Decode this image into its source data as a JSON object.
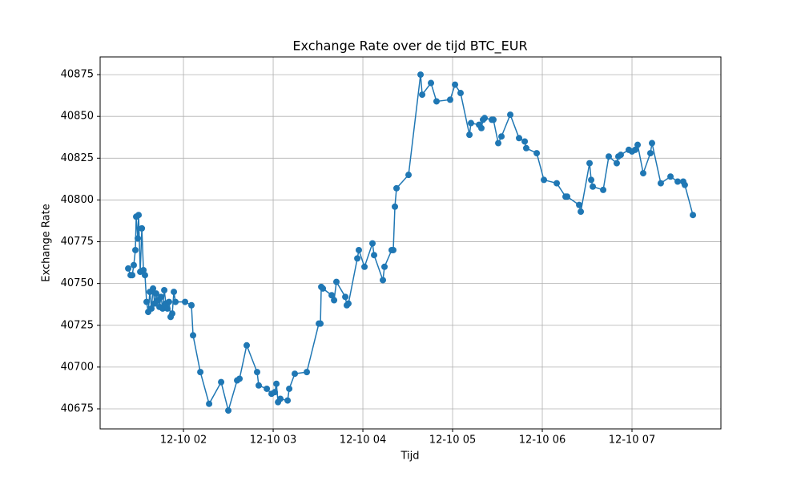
{
  "chart_data": {
    "type": "line",
    "title": "Exchange Rate over de tijd BTC_EUR",
    "x_label": "Tijd",
    "y_label": "Exchange Rate",
    "grid": true,
    "marker": "circle",
    "xlim": [
      1.071,
      7.991
    ],
    "ylim": [
      40663.0,
      40885.6
    ],
    "xticks": [
      {
        "value": 2,
        "label": "12-10 02"
      },
      {
        "value": 3,
        "label": "12-10 03"
      },
      {
        "value": 4,
        "label": "12-10 04"
      },
      {
        "value": 5,
        "label": "12-10 05"
      },
      {
        "value": 6,
        "label": "12-10 06"
      },
      {
        "value": 7,
        "label": "12-10 07"
      }
    ],
    "yticks": [
      40675,
      40700,
      40725,
      40750,
      40775,
      40800,
      40825,
      40850,
      40875
    ],
    "x": [
      1.384,
      1.411,
      1.429,
      1.446,
      1.464,
      1.473,
      1.491,
      1.5,
      1.518,
      1.536,
      1.554,
      1.571,
      1.589,
      1.607,
      1.625,
      1.643,
      1.661,
      1.679,
      1.696,
      1.714,
      1.732,
      1.75,
      1.768,
      1.786,
      1.804,
      1.821,
      1.839,
      1.857,
      1.875,
      1.893,
      1.911,
      2.018,
      2.089,
      2.107,
      2.188,
      2.286,
      2.42,
      2.5,
      2.598,
      2.625,
      2.705,
      2.821,
      2.839,
      2.929,
      2.982,
      3.018,
      3.036,
      3.054,
      3.08,
      3.161,
      3.179,
      3.241,
      3.375,
      3.509,
      3.527,
      3.536,
      3.554,
      3.652,
      3.679,
      3.705,
      3.804,
      3.821,
      3.839,
      3.938,
      3.955,
      4.018,
      4.107,
      4.125,
      4.223,
      4.241,
      4.321,
      4.339,
      4.357,
      4.375,
      4.509,
      4.643,
      4.661,
      4.759,
      4.821,
      4.973,
      5.027,
      5.089,
      5.188,
      5.205,
      5.295,
      5.321,
      5.339,
      5.357,
      5.438,
      5.455,
      5.509,
      5.545,
      5.643,
      5.741,
      5.804,
      5.821,
      5.938,
      6.018,
      6.161,
      6.259,
      6.277,
      6.411,
      6.429,
      6.527,
      6.545,
      6.563,
      6.679,
      6.741,
      6.83,
      6.848,
      6.875,
      6.964,
      7,
      7.036,
      7.063,
      7.125,
      7.205,
      7.223,
      7.321,
      7.429,
      7.509,
      7.571,
      7.589,
      7.679
    ],
    "series": [
      {
        "name": "BTC_EUR",
        "color": "#1f77b4",
        "values": [
          40759,
          40755,
          40755,
          40761,
          40770,
          40790,
          40777,
          40791,
          40757,
          40783,
          40758,
          40755,
          40739,
          40733,
          40745,
          40735,
          40747,
          40738,
          40744,
          40740,
          40736,
          40742,
          40735,
          40746,
          40738,
          40735,
          40739,
          40730,
          40732,
          40745,
          40739,
          40739,
          40737,
          40719,
          40697,
          40678,
          40691,
          40674,
          40692,
          40693,
          40713,
          40697,
          40689,
          40687,
          40684,
          40685,
          40690,
          40679,
          40681,
          40680,
          40687,
          40696,
          40697,
          40726,
          40726,
          40748,
          40747,
          40743,
          40740,
          40751,
          40742,
          40737,
          40738,
          40765,
          40770,
          40760,
          40774,
          40767,
          40752,
          40760,
          40770,
          40770,
          40796,
          40807,
          40815,
          40875,
          40863,
          40870,
          40859,
          40860,
          40869,
          40864,
          40839,
          40846,
          40845,
          40843,
          40848,
          40849,
          40848,
          40848,
          40834,
          40838,
          40851,
          40837,
          40835,
          40831,
          40828,
          40812,
          40810,
          40802,
          40802,
          40797,
          40793,
          40822,
          40812,
          40808,
          40806,
          40826,
          40822,
          40826,
          40827,
          40830,
          40829,
          40830,
          40833,
          40816,
          40828,
          40834,
          40810,
          40814,
          40811,
          40811,
          40809,
          40791
        ]
      }
    ]
  }
}
